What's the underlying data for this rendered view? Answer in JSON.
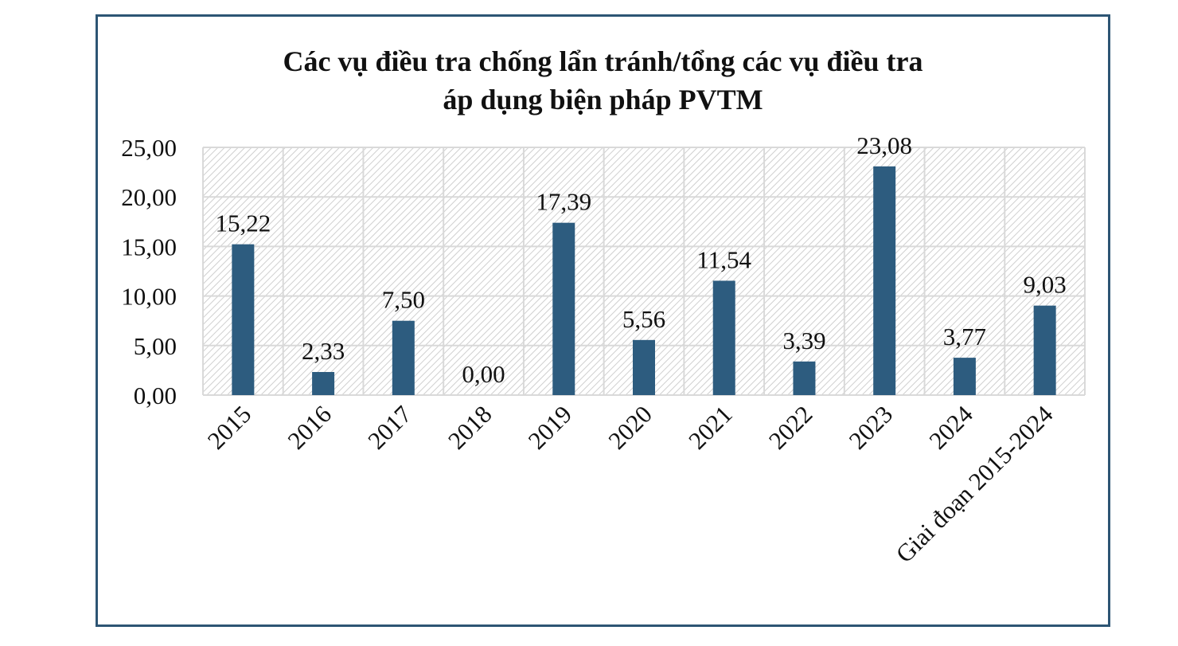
{
  "chart_data": {
    "type": "bar",
    "title": "Các vụ điều tra chống lẩn tránh/tổng các vụ điều tra áp dụng biện pháp PVTM",
    "title_lines": [
      "Các vụ điều tra chống lẩn tránh/tổng các vụ điều tra",
      "áp dụng biện pháp PVTM"
    ],
    "categories": [
      "2015",
      "2016",
      "2017",
      "2018",
      "2019",
      "2020",
      "2021",
      "2022",
      "2023",
      "2024",
      "Giai đoạn 2015-2024"
    ],
    "values": [
      15.22,
      2.33,
      7.5,
      0.0,
      17.39,
      5.56,
      11.54,
      3.39,
      23.08,
      3.77,
      9.03
    ],
    "data_labels": [
      "15,22",
      "2,33",
      "7,50",
      "0,00",
      "17,39",
      "5,56",
      "11,54",
      "3,39",
      "23,08",
      "3,77",
      "9,03"
    ],
    "y_ticks": [
      0,
      5,
      10,
      15,
      20,
      25
    ],
    "y_tick_labels": [
      "0,00",
      "5,00",
      "10,00",
      "15,00",
      "20,00",
      "25,00"
    ],
    "ylim": [
      0,
      25
    ],
    "xlabel": "",
    "ylabel": "",
    "grid": true,
    "legend": "none",
    "bar_color": "#2d5c7f",
    "plot_background": "hatched-gray"
  }
}
